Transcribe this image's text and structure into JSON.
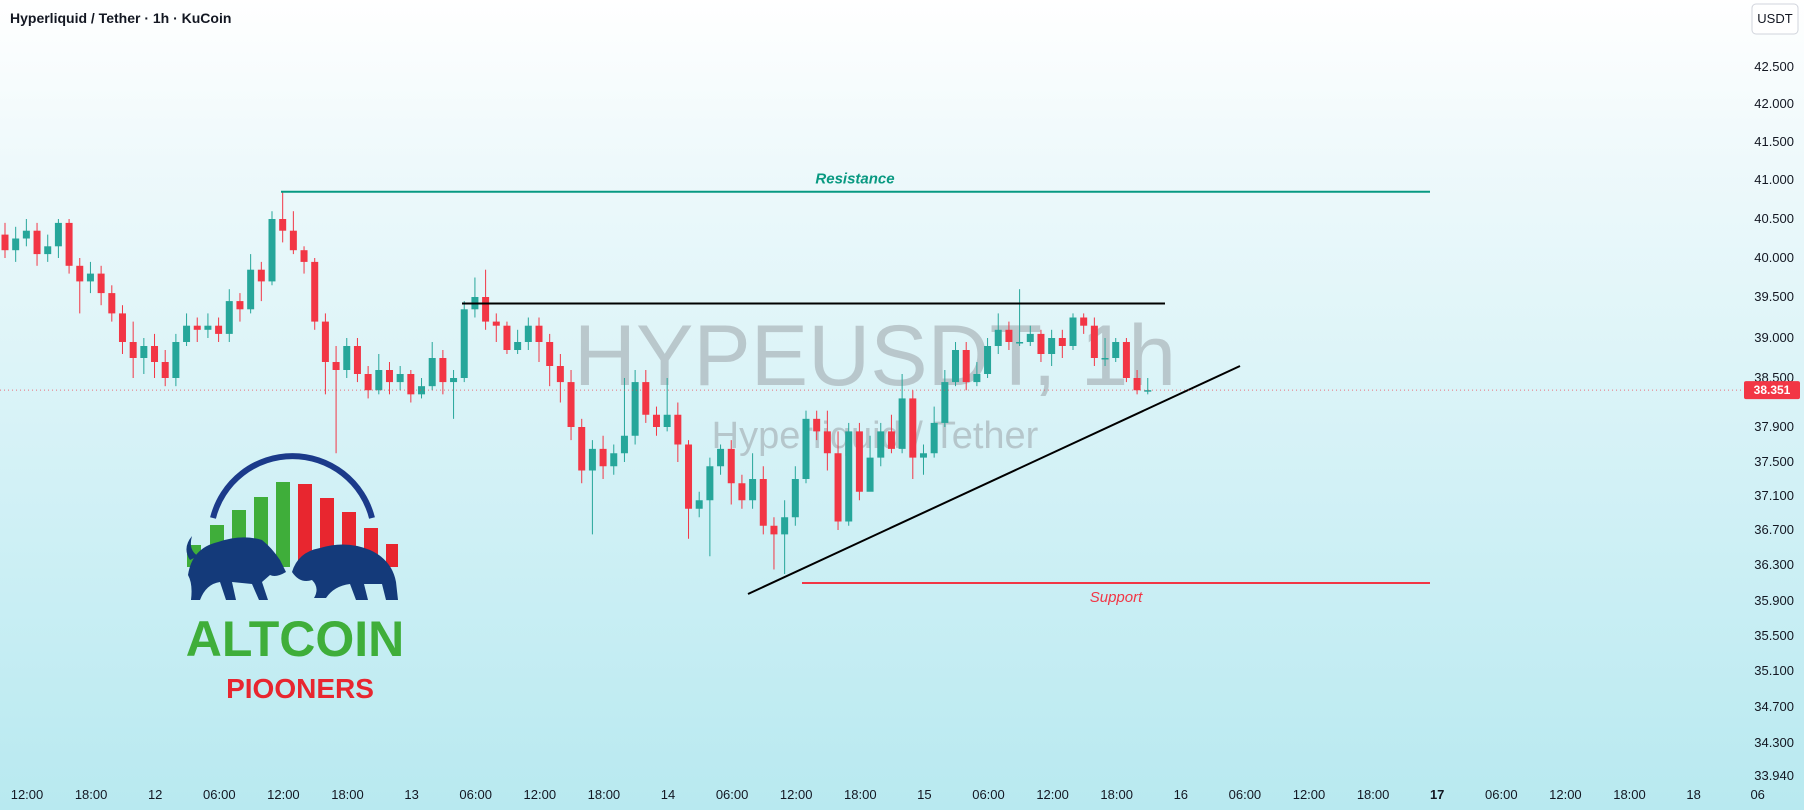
{
  "header": {
    "title": "Hyperliquid / Tether · 1h · KuCoin",
    "currency_button": "USDT"
  },
  "watermark": {
    "symbol": "HYPEUSDT, 1h",
    "name": "Hyperliquid / Tether"
  },
  "logo": {
    "word1": "ALTCOIN",
    "word2": "PIOONERS"
  },
  "colors": {
    "up": "#26a69a",
    "down": "#f23645",
    "resistance": "#089981",
    "support": "#f23645",
    "trend": "#000000"
  },
  "chart_data": {
    "type": "candlestick",
    "ylim": [
      33.94,
      43.2
    ],
    "y_ticks": [
      "42.500",
      "42.000",
      "41.500",
      "41.000",
      "40.500",
      "40.000",
      "39.500",
      "39.000",
      "38.500",
      "37.900",
      "37.500",
      "37.100",
      "36.700",
      "36.300",
      "35.900",
      "35.500",
      "35.100",
      "34.700",
      "34.300",
      "33.940"
    ],
    "x_ticks": [
      "12:00",
      "18:00",
      "12",
      "06:00",
      "12:00",
      "18:00",
      "13",
      "06:00",
      "12:00",
      "18:00",
      "14",
      "06:00",
      "12:00",
      "18:00",
      "15",
      "06:00",
      "12:00",
      "18:00",
      "16",
      "06:00",
      "12:00",
      "18:00",
      "17",
      "06:00",
      "12:00",
      "18:00",
      "18",
      "06"
    ],
    "last_price": "38.351",
    "annotations": {
      "resistance_label": "Resistance",
      "support_label": "Support",
      "resistance_level": 40.85,
      "support_level": 36.1,
      "range_top": 39.42
    },
    "candles": [
      [
        40.3,
        40.1,
        40.45,
        40.0
      ],
      [
        40.1,
        40.25,
        40.4,
        39.95
      ],
      [
        40.25,
        40.35,
        40.5,
        40.15
      ],
      [
        40.35,
        40.05,
        40.45,
        39.9
      ],
      [
        40.05,
        40.15,
        40.3,
        39.95
      ],
      [
        40.15,
        40.45,
        40.5,
        40.0
      ],
      [
        40.45,
        39.9,
        40.5,
        39.8
      ],
      [
        39.9,
        39.7,
        40.0,
        39.3
      ],
      [
        39.7,
        39.8,
        39.95,
        39.55
      ],
      [
        39.8,
        39.55,
        39.9,
        39.4
      ],
      [
        39.55,
        39.3,
        39.65,
        39.2
      ],
      [
        39.3,
        38.95,
        39.4,
        38.8
      ],
      [
        38.95,
        38.75,
        39.2,
        38.5
      ],
      [
        38.75,
        38.9,
        39.0,
        38.55
      ],
      [
        38.9,
        38.7,
        39.05,
        38.5
      ],
      [
        38.7,
        38.5,
        38.85,
        38.4
      ],
      [
        38.5,
        38.95,
        39.05,
        38.4
      ],
      [
        38.95,
        39.15,
        39.3,
        38.9
      ],
      [
        39.15,
        39.1,
        39.25,
        38.95
      ],
      [
        39.1,
        39.15,
        39.3,
        39.0
      ],
      [
        39.15,
        39.05,
        39.25,
        38.95
      ],
      [
        39.05,
        39.45,
        39.6,
        38.95
      ],
      [
        39.45,
        39.35,
        39.55,
        39.2
      ],
      [
        39.35,
        39.85,
        40.05,
        39.3
      ],
      [
        39.85,
        39.7,
        39.95,
        39.45
      ],
      [
        39.7,
        40.5,
        40.6,
        39.65
      ],
      [
        40.5,
        40.35,
        40.85,
        40.2
      ],
      [
        40.35,
        40.1,
        40.6,
        40.05
      ],
      [
        40.1,
        39.95,
        40.15,
        39.8
      ],
      [
        39.95,
        39.2,
        40.0,
        39.1
      ],
      [
        39.2,
        38.7,
        39.3,
        38.3
      ],
      [
        38.7,
        38.6,
        38.9,
        37.6
      ],
      [
        38.6,
        38.9,
        39.0,
        38.5
      ],
      [
        38.9,
        38.55,
        39.0,
        38.45
      ],
      [
        38.55,
        38.35,
        38.65,
        38.25
      ],
      [
        38.35,
        38.6,
        38.8,
        38.3
      ],
      [
        38.6,
        38.45,
        38.7,
        38.3
      ],
      [
        38.45,
        38.55,
        38.65,
        38.35
      ],
      [
        38.55,
        38.3,
        38.6,
        38.2
      ],
      [
        38.3,
        38.4,
        38.5,
        38.25
      ],
      [
        38.4,
        38.75,
        38.95,
        38.35
      ],
      [
        38.75,
        38.45,
        38.85,
        38.3
      ],
      [
        38.45,
        38.5,
        38.6,
        38.0
      ],
      [
        38.5,
        39.35,
        39.45,
        38.45
      ],
      [
        39.35,
        39.5,
        39.75,
        39.25
      ],
      [
        39.5,
        39.2,
        39.85,
        39.1
      ],
      [
        39.2,
        39.15,
        39.3,
        38.95
      ],
      [
        39.15,
        38.85,
        39.2,
        38.8
      ],
      [
        38.85,
        38.95,
        39.1,
        38.8
      ],
      [
        38.95,
        39.15,
        39.25,
        38.85
      ],
      [
        39.15,
        38.95,
        39.25,
        38.7
      ],
      [
        38.95,
        38.65,
        39.05,
        38.4
      ],
      [
        38.65,
        38.45,
        38.8,
        38.2
      ],
      [
        38.45,
        37.9,
        38.6,
        37.75
      ],
      [
        37.9,
        37.4,
        38.0,
        37.25
      ],
      [
        37.4,
        37.65,
        37.75,
        36.65
      ],
      [
        37.65,
        37.45,
        37.8,
        37.3
      ],
      [
        37.45,
        37.6,
        37.7,
        37.35
      ],
      [
        37.6,
        37.8,
        38.5,
        37.5
      ],
      [
        37.8,
        38.45,
        38.6,
        37.7
      ],
      [
        38.45,
        38.05,
        38.6,
        37.95
      ],
      [
        38.05,
        37.9,
        38.15,
        37.8
      ],
      [
        37.9,
        38.05,
        38.5,
        37.85
      ],
      [
        38.05,
        37.7,
        38.2,
        37.5
      ],
      [
        37.7,
        36.95,
        37.75,
        36.6
      ],
      [
        36.95,
        37.05,
        37.15,
        36.85
      ],
      [
        37.05,
        37.45,
        37.55,
        36.4
      ],
      [
        37.45,
        37.65,
        37.7,
        37.35
      ],
      [
        37.65,
        37.25,
        37.75,
        37.0
      ],
      [
        37.25,
        37.05,
        37.35,
        36.95
      ],
      [
        37.05,
        37.3,
        37.6,
        36.95
      ],
      [
        37.3,
        36.75,
        37.45,
        36.65
      ],
      [
        36.75,
        36.65,
        36.85,
        36.25
      ],
      [
        36.65,
        36.85,
        37.05,
        36.2
      ],
      [
        36.85,
        37.3,
        37.45,
        36.75
      ],
      [
        37.3,
        38.0,
        38.1,
        37.25
      ],
      [
        38.0,
        37.85,
        38.1,
        37.75
      ],
      [
        37.85,
        37.6,
        38.1,
        37.4
      ],
      [
        37.6,
        36.8,
        37.85,
        36.7
      ],
      [
        36.8,
        37.85,
        37.95,
        36.75
      ],
      [
        37.85,
        37.15,
        37.95,
        37.05
      ],
      [
        37.15,
        37.55,
        37.8,
        37.45
      ],
      [
        37.55,
        37.85,
        37.95,
        37.45
      ],
      [
        37.85,
        37.65,
        38.05,
        37.6
      ],
      [
        37.65,
        38.25,
        38.55,
        37.6
      ],
      [
        38.25,
        37.55,
        38.35,
        37.3
      ],
      [
        37.55,
        37.6,
        37.7,
        37.35
      ],
      [
        37.6,
        37.95,
        38.15,
        37.55
      ],
      [
        37.95,
        38.45,
        38.6,
        37.9
      ],
      [
        38.45,
        38.85,
        38.95,
        38.4
      ],
      [
        38.85,
        38.45,
        38.95,
        38.35
      ],
      [
        38.45,
        38.55,
        38.7,
        38.4
      ],
      [
        38.55,
        38.9,
        39.0,
        38.5
      ],
      [
        38.9,
        39.1,
        39.3,
        38.8
      ],
      [
        39.1,
        38.95,
        39.2,
        38.85
      ],
      [
        38.95,
        38.95,
        39.6,
        38.9
      ],
      [
        38.95,
        39.05,
        39.15,
        38.9
      ],
      [
        39.05,
        38.8,
        39.1,
        38.7
      ],
      [
        38.8,
        39.0,
        39.1,
        38.65
      ],
      [
        39.0,
        38.9,
        39.1,
        38.75
      ],
      [
        38.9,
        39.25,
        39.3,
        38.85
      ],
      [
        39.25,
        39.15,
        39.3,
        39.05
      ],
      [
        39.15,
        38.75,
        39.25,
        38.65
      ],
      [
        38.75,
        38.75,
        39.0,
        38.65
      ],
      [
        38.75,
        38.95,
        39.0,
        38.7
      ],
      [
        38.95,
        38.5,
        39.0,
        38.45
      ],
      [
        38.5,
        38.35,
        38.6,
        38.3
      ],
      [
        38.35,
        38.351,
        38.5,
        38.3
      ]
    ]
  }
}
